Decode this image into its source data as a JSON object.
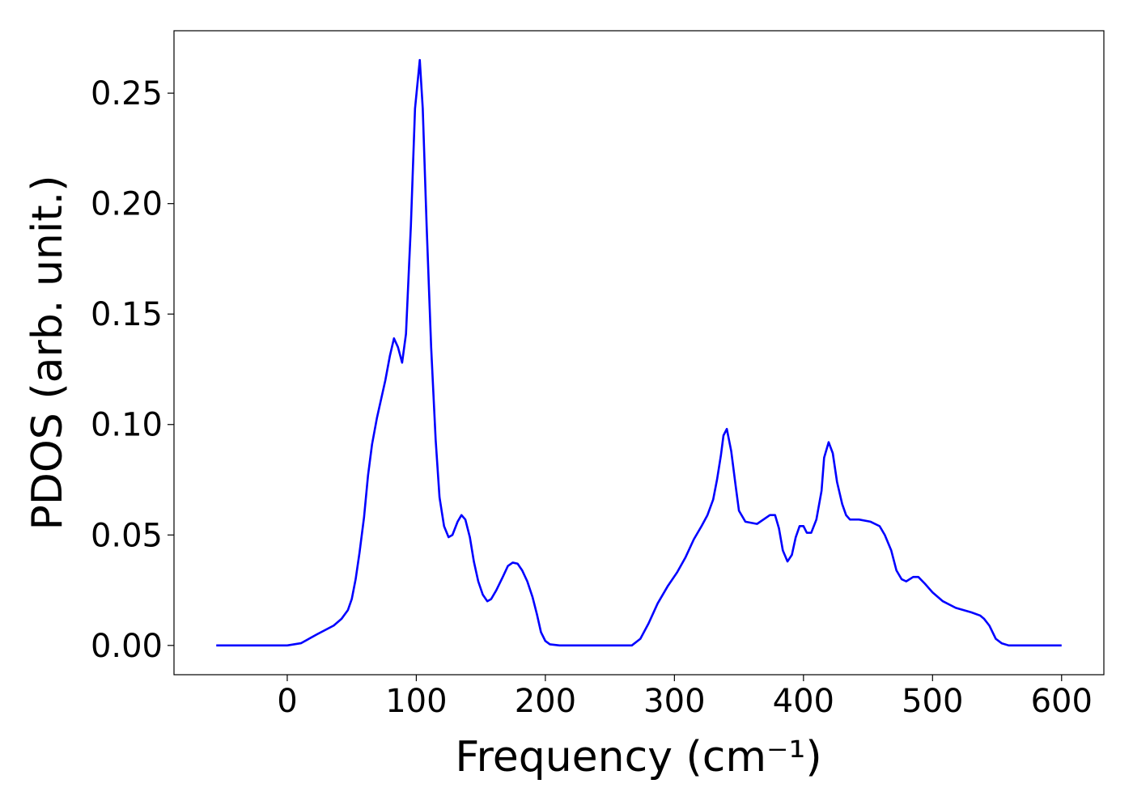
{
  "chart_data": {
    "type": "line",
    "xlabel": "Frequency (cm⁻¹)",
    "ylabel": "PDOS (arb. unit.)",
    "xlim": [
      -87.75,
      632.75
    ],
    "ylim": [
      -0.01325,
      0.27825
    ],
    "xticks": [
      0,
      100,
      200,
      300,
      400,
      500,
      600
    ],
    "yticks": [
      {
        "value": 0,
        "label": "0.00"
      },
      {
        "value": 0.05,
        "label": "0.05"
      },
      {
        "value": 0.1,
        "label": "0.10"
      },
      {
        "value": 0.15,
        "label": "0.15"
      },
      {
        "value": 0.2,
        "label": "0.20"
      },
      {
        "value": 0.25,
        "label": "0.25"
      }
    ],
    "grid": false,
    "series": [
      {
        "color": "#0000ff",
        "x": [
          -55,
          0,
          10.6,
          23,
          36,
          42,
          47,
          50,
          53,
          56,
          59.5,
          62.6,
          65.7,
          69.5,
          76,
          79.5,
          82.7,
          85.8,
          89,
          92,
          95.8,
          99,
          102.7,
          105,
          108,
          111.5,
          115,
          118,
          121.5,
          125,
          128,
          132,
          135,
          138,
          141.5,
          144.6,
          148,
          151.5,
          155,
          158,
          162,
          167,
          171,
          174.7,
          178.5,
          182,
          186,
          190,
          193.5,
          196.6,
          200,
          203.5,
          211,
          267,
          273.6,
          280,
          287,
          295,
          302,
          308.7,
          315,
          321,
          325.6,
          330,
          333,
          336,
          338,
          340.6,
          344,
          347.5,
          350,
          355,
          364,
          374,
          378,
          381,
          384,
          387.6,
          391,
          394,
          397,
          400,
          402.6,
          406,
          410,
          414,
          416,
          419.5,
          422.7,
          426,
          430,
          433,
          436,
          443,
          452,
          459,
          463,
          468,
          472,
          476,
          479.6,
          485,
          489,
          494,
          500,
          508,
          518,
          530,
          537,
          540,
          544,
          549,
          553.5,
          559,
          600
        ],
        "values": [
          0,
          0,
          0.001,
          0.005,
          0.009,
          0.012,
          0.016,
          0.021,
          0.03,
          0.042,
          0.058,
          0.077,
          0.091,
          0.103,
          0.12,
          0.131,
          0.139,
          0.135,
          0.128,
          0.141,
          0.19,
          0.243,
          0.265,
          0.243,
          0.19,
          0.135,
          0.093,
          0.067,
          0.054,
          0.049,
          0.05,
          0.056,
          0.059,
          0.057,
          0.049,
          0.038,
          0.029,
          0.023,
          0.02,
          0.021,
          0.025,
          0.031,
          0.036,
          0.0375,
          0.037,
          0.034,
          0.029,
          0.022,
          0.014,
          0.006,
          0.002,
          0.0005,
          0,
          0,
          0.003,
          0.01,
          0.019,
          0.027,
          0.033,
          0.04,
          0.048,
          0.054,
          0.059,
          0.066,
          0.075,
          0.086,
          0.095,
          0.098,
          0.088,
          0.072,
          0.061,
          0.056,
          0.055,
          0.059,
          0.059,
          0.053,
          0.043,
          0.038,
          0.041,
          0.049,
          0.054,
          0.054,
          0.051,
          0.051,
          0.057,
          0.07,
          0.085,
          0.092,
          0.087,
          0.074,
          0.064,
          0.059,
          0.057,
          0.057,
          0.056,
          0.054,
          0.05,
          0.043,
          0.034,
          0.03,
          0.029,
          0.031,
          0.031,
          0.028,
          0.024,
          0.02,
          0.017,
          0.015,
          0.0135,
          0.012,
          0.009,
          0.003,
          0.001,
          0,
          0
        ]
      }
    ]
  }
}
